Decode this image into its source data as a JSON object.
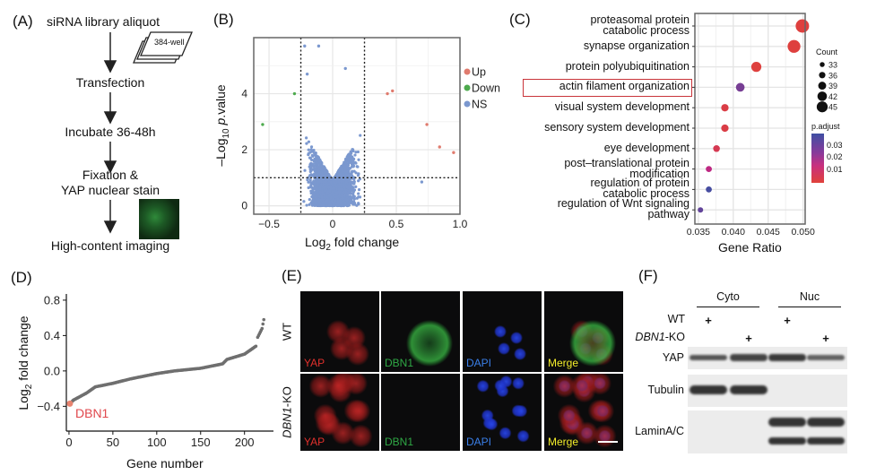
{
  "panelA": {
    "label": "(A)",
    "steps": [
      "siRNA library aliquot",
      "Transfection",
      "Incubate 36-48h",
      "Fixation &",
      "YAP nuclear stain",
      "High-content imaging"
    ],
    "plate_label": "384-well"
  },
  "panelB": {
    "label": "(B)",
    "chart_data": {
      "type": "scatter",
      "xlabel": "Log2 fold change",
      "ylabel": "–Log10 p.value",
      "xlim": [
        -0.62,
        1.0
      ],
      "ylim": [
        -0.3,
        6.0
      ],
      "xticks": [
        "−0.5",
        "0",
        "0.5",
        "1.0"
      ],
      "xtick_values": [
        -0.5,
        0,
        0.5,
        1.0
      ],
      "yticks": [
        "0",
        "2",
        "4"
      ],
      "ytick_values": [
        0,
        2,
        4
      ],
      "thresholds": {
        "log2fc": [
          -0.25,
          0.25
        ],
        "neg_log10_p": 1
      },
      "grid": true,
      "legend": {
        "placement": "right",
        "entries": [
          {
            "name": "Up",
            "color": "#e07b6e"
          },
          {
            "name": "Down",
            "color": "#4daa4d"
          },
          {
            "name": "NS",
            "color": "#7b98cf"
          }
        ]
      },
      "notable_points": [
        {
          "x": -0.22,
          "y": 5.7,
          "group": "NS"
        },
        {
          "x": -0.11,
          "y": 5.7,
          "group": "NS"
        },
        {
          "x": 0.1,
          "y": 4.9,
          "group": "NS"
        },
        {
          "x": -0.2,
          "y": 4.7,
          "group": "NS"
        },
        {
          "x": 0.47,
          "y": 4.1,
          "group": "Up"
        },
        {
          "x": 0.43,
          "y": 4.0,
          "group": "Up"
        },
        {
          "x": -0.3,
          "y": 4.0,
          "group": "Down"
        },
        {
          "x": -0.55,
          "y": 2.9,
          "group": "Down"
        },
        {
          "x": 0.95,
          "y": 1.9,
          "group": "Up"
        },
        {
          "x": 0.84,
          "y": 2.1,
          "group": "Up"
        },
        {
          "x": 0.74,
          "y": 2.9,
          "group": "Up"
        },
        {
          "x": 0.7,
          "y": 0.85,
          "group": "NS"
        }
      ]
    }
  },
  "panelC": {
    "label": "(C)",
    "chart_data": {
      "type": "scatter",
      "xlabel": "Gene Ratio",
      "xlim": [
        0.0345,
        0.0503
      ],
      "xticks": [
        "0.035",
        "0.040",
        "0.045",
        "0.050"
      ],
      "xtick_values": [
        0.035,
        0.04,
        0.045,
        0.05
      ],
      "grid": true,
      "categories": [
        [
          "proteasomal protein",
          "catabolic process"
        ],
        [
          "synapse organization"
        ],
        [
          "protein polyubiquitination"
        ],
        [
          "actin filament organization"
        ],
        [
          "visual system development"
        ],
        [
          "sensory system development"
        ],
        [
          "eye development"
        ],
        [
          "post–translational protein",
          "modification"
        ],
        [
          "regulation of protein",
          "catabolic process"
        ],
        [
          "regulation of Wnt signaling",
          "pathway"
        ]
      ],
      "gene_ratio": [
        0.0499,
        0.0487,
        0.0433,
        0.041,
        0.0388,
        0.0388,
        0.0376,
        0.0365,
        0.0365,
        0.0353
      ],
      "count": [
        45,
        44,
        40,
        38,
        36,
        36,
        35,
        34,
        34,
        33
      ],
      "p_adjust": [
        0.001,
        0.001,
        0.001,
        0.028,
        0.003,
        0.003,
        0.006,
        0.018,
        0.035,
        0.031
      ],
      "highlighted": "actin filament organization",
      "highlight_color": "#c9343a",
      "size_legend": {
        "title": "Count",
        "values": [
          "33",
          "36",
          "39",
          "42",
          "45"
        ]
      },
      "color_legend": {
        "title": "p.adjust",
        "ticks": [
          "0.03",
          "0.02",
          "0.01"
        ],
        "low_color": "#e0413a",
        "high_color": "#3f4fa3"
      }
    }
  },
  "panelD": {
    "label": "(D)",
    "chart_data": {
      "type": "scatter",
      "xlabel": "Gene number",
      "ylabel": "Log2 fold change",
      "xlim": [
        -3,
        233
      ],
      "ylim": [
        -0.68,
        0.87
      ],
      "xticks": [
        "0",
        "50",
        "100",
        "150",
        "200"
      ],
      "xtick_values": [
        0,
        50,
        100,
        150,
        200
      ],
      "yticks": [
        "0.8",
        "0.4",
        "0.0",
        "−0.4"
      ],
      "ytick_values": [
        0.8,
        0.4,
        0,
        -0.4
      ],
      "sorted_profile": [
        [
          1,
          -0.37
        ],
        [
          5,
          -0.33
        ],
        [
          20,
          -0.25
        ],
        [
          30,
          -0.18
        ],
        [
          50,
          -0.14
        ],
        [
          70,
          -0.09
        ],
        [
          100,
          -0.03
        ],
        [
          120,
          0.0
        ],
        [
          150,
          0.03
        ],
        [
          175,
          0.08
        ],
        [
          180,
          0.13
        ],
        [
          200,
          0.19
        ],
        [
          213,
          0.28
        ],
        [
          215,
          0.38
        ],
        [
          220,
          0.48
        ],
        [
          222,
          0.58
        ]
      ],
      "highlight": {
        "name": "DBN1",
        "x": 1,
        "y": -0.37,
        "color": "#e0474c"
      },
      "point_color": "#6f6f6f"
    }
  },
  "panelE": {
    "label": "(E)",
    "rows": [
      {
        "label": "WT"
      },
      {
        "label_italic": "DBN1",
        "label_rest": "-KO"
      }
    ],
    "channels": [
      {
        "name": "YAP",
        "color": "#e0302c"
      },
      {
        "name": "DBN1",
        "color": "#2fa845"
      },
      {
        "name": "DAPI",
        "color": "#3a7fe8"
      },
      {
        "name": "Merge",
        "color": "#f4ee2a"
      }
    ]
  },
  "panelF": {
    "label": "(F)",
    "groups": [
      "Cyto",
      "Nuc"
    ],
    "conditions": [
      {
        "label": "WT",
        "lanes": [
          1,
          3
        ]
      },
      {
        "label_italic": "DBN1",
        "label_rest": "-KO",
        "lanes": [
          2,
          4
        ]
      }
    ],
    "plus": "+",
    "blots": [
      {
        "name": "YAP",
        "intensity": [
          0.6,
          0.8,
          0.9,
          0.45
        ]
      },
      {
        "name": "Tubulin",
        "intensity": [
          1,
          1,
          0,
          0
        ]
      },
      {
        "name": "LaminA/C",
        "intensity": [
          0,
          0,
          1,
          1
        ]
      }
    ]
  }
}
